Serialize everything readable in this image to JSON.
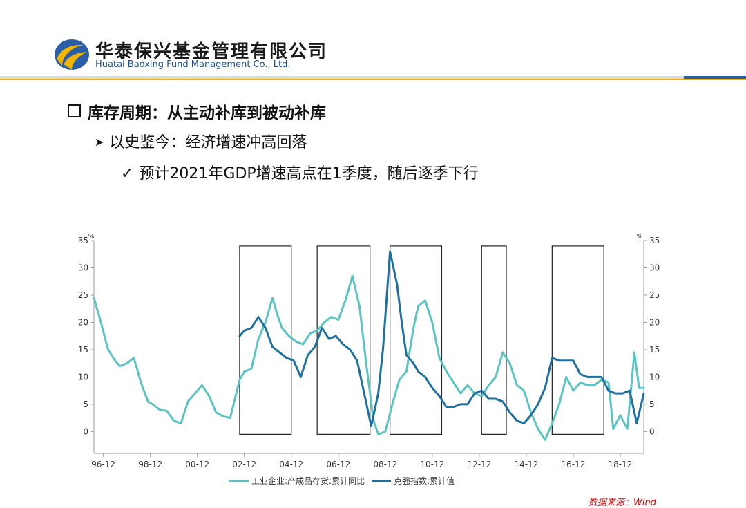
{
  "header": {
    "company_cn": "华泰保兴基金管理有限公司",
    "company_en": "Huatai Baoxing Fund Management Co., Ltd.",
    "logo_icon": "huatai-logo-icon"
  },
  "bullets": {
    "level1": "库存周期：从主动补库到被动补库",
    "level2": "以史鉴今：经济增速冲高回落",
    "level3": "预计2021年GDP增速高点在1季度，随后逐季下行"
  },
  "source": "数据来源：Wind",
  "colors": {
    "teal": "#5cc3c3",
    "blue": "#1f6f9f",
    "gold": "#f0b400",
    "brand_blue": "#1f4e8c"
  },
  "chart_data": {
    "type": "line",
    "xlabels": [
      "96-12",
      "98-12",
      "00-12",
      "02-12",
      "04-12",
      "06-12",
      "08-12",
      "10-12",
      "12-12",
      "14-12",
      "16-12",
      "18-12"
    ],
    "ylim": [
      -4,
      35
    ],
    "yticks": [
      0,
      5,
      10,
      15,
      20,
      25,
      30,
      35
    ],
    "yunit_left": "%",
    "yunit_right": "%",
    "x_range": [
      1996.5,
      2019.9
    ],
    "series": [
      {
        "name": "工业企业:产成品存货:累计同比",
        "color": "#5cc3c3",
        "x": [
          1996.5,
          1996.8,
          1997.1,
          1997.4,
          1997.6,
          1997.9,
          1998.2,
          1998.5,
          1998.8,
          1999.0,
          1999.3,
          1999.6,
          1999.9,
          2000.2,
          2000.5,
          2000.8,
          2001.1,
          2001.4,
          2001.7,
          2002.0,
          2002.3,
          2002.5,
          2002.7,
          2002.9,
          2003.2,
          2003.5,
          2003.8,
          2004.1,
          2004.3,
          2004.5,
          2004.8,
          2005.1,
          2005.4,
          2005.7,
          2006.0,
          2006.3,
          2006.6,
          2006.9,
          2007.2,
          2007.5,
          2007.8,
          2008.1,
          2008.4,
          2008.6,
          2008.9,
          2009.2,
          2009.5,
          2009.8,
          2010.1,
          2010.3,
          2010.6,
          2010.9,
          2011.2,
          2011.5,
          2011.8,
          2012.1,
          2012.4,
          2012.7,
          2013.0,
          2013.3,
          2013.6,
          2013.9,
          2014.2,
          2014.5,
          2014.8,
          2015.1,
          2015.4,
          2015.7,
          2016.0,
          2016.3,
          2016.6,
          2016.9,
          2017.2,
          2017.5,
          2017.8,
          2018.1,
          2018.4,
          2018.6,
          2018.9,
          2019.2,
          2019.5,
          2019.7,
          2019.9
        ],
        "y": [
          24.5,
          20,
          15,
          13,
          12,
          12.5,
          13.5,
          9,
          5.5,
          5,
          4,
          3.8,
          2,
          1.5,
          5.5,
          7,
          8.5,
          6.5,
          3.5,
          2.8,
          2.5,
          6,
          9.5,
          11,
          11.5,
          17,
          20,
          24.5,
          21.5,
          19,
          17.5,
          16.5,
          16,
          18,
          18.5,
          20,
          21,
          20.5,
          24,
          28.5,
          23,
          12,
          2,
          -0.5,
          0,
          5,
          9.5,
          11,
          19,
          23,
          24,
          20,
          13.5,
          11,
          9,
          7,
          8.5,
          7,
          6.5,
          8.5,
          10,
          14.5,
          12.5,
          8.5,
          7.5,
          3.5,
          0.5,
          -1.5,
          1.5,
          5,
          10,
          7.5,
          9,
          8.5,
          8.5,
          9.5,
          9,
          0.5,
          3,
          0.5,
          14.5,
          8,
          8
        ]
      },
      {
        "name": "克强指数:累计值",
        "color": "#1f6f9f",
        "x": [
          2002.7,
          2002.9,
          2003.2,
          2003.5,
          2003.8,
          2004.1,
          2004.4,
          2004.7,
          2005.0,
          2005.3,
          2005.6,
          2005.9,
          2006.2,
          2006.5,
          2006.8,
          2007.1,
          2007.4,
          2007.7,
          2008.0,
          2008.3,
          2008.6,
          2008.8,
          2009.1,
          2009.4,
          2009.6,
          2009.8,
          2010.1,
          2010.3,
          2010.6,
          2010.9,
          2011.2,
          2011.5,
          2011.8,
          2012.1,
          2012.4,
          2012.7,
          2013.0,
          2013.3,
          2013.6,
          2013.9,
          2014.2,
          2014.5,
          2014.8,
          2015.1,
          2015.4,
          2015.7,
          2016.0,
          2016.3,
          2016.6,
          2016.9,
          2017.2,
          2017.5,
          2017.8,
          2018.1,
          2018.4,
          2018.7,
          2019.0,
          2019.3,
          2019.6,
          2019.9
        ],
        "y": [
          17.5,
          18.5,
          19,
          21,
          19,
          15.5,
          14.5,
          13.5,
          13,
          10,
          14,
          15.5,
          19,
          17,
          17.5,
          16,
          15,
          13,
          7,
          1,
          7,
          15,
          33,
          27,
          20,
          14,
          12.5,
          11,
          10,
          8,
          6.5,
          4.5,
          4.5,
          5,
          5,
          7,
          7.5,
          6,
          6,
          5.5,
          3.5,
          2,
          1.5,
          3,
          5,
          8,
          13.5,
          13,
          13,
          13,
          10.5,
          10,
          10,
          10,
          7.5,
          7,
          7,
          7.5,
          1.5,
          7
        ]
      }
    ],
    "highlight_boxes": [
      {
        "x0": 2002.7,
        "x1": 2004.9
      },
      {
        "x0": 2006.0,
        "x1": 2008.25
      },
      {
        "x0": 2009.1,
        "x1": 2011.3
      },
      {
        "x0": 2013.0,
        "x1": 2014.05
      },
      {
        "x0": 2016.0,
        "x1": 2018.2
      }
    ]
  }
}
